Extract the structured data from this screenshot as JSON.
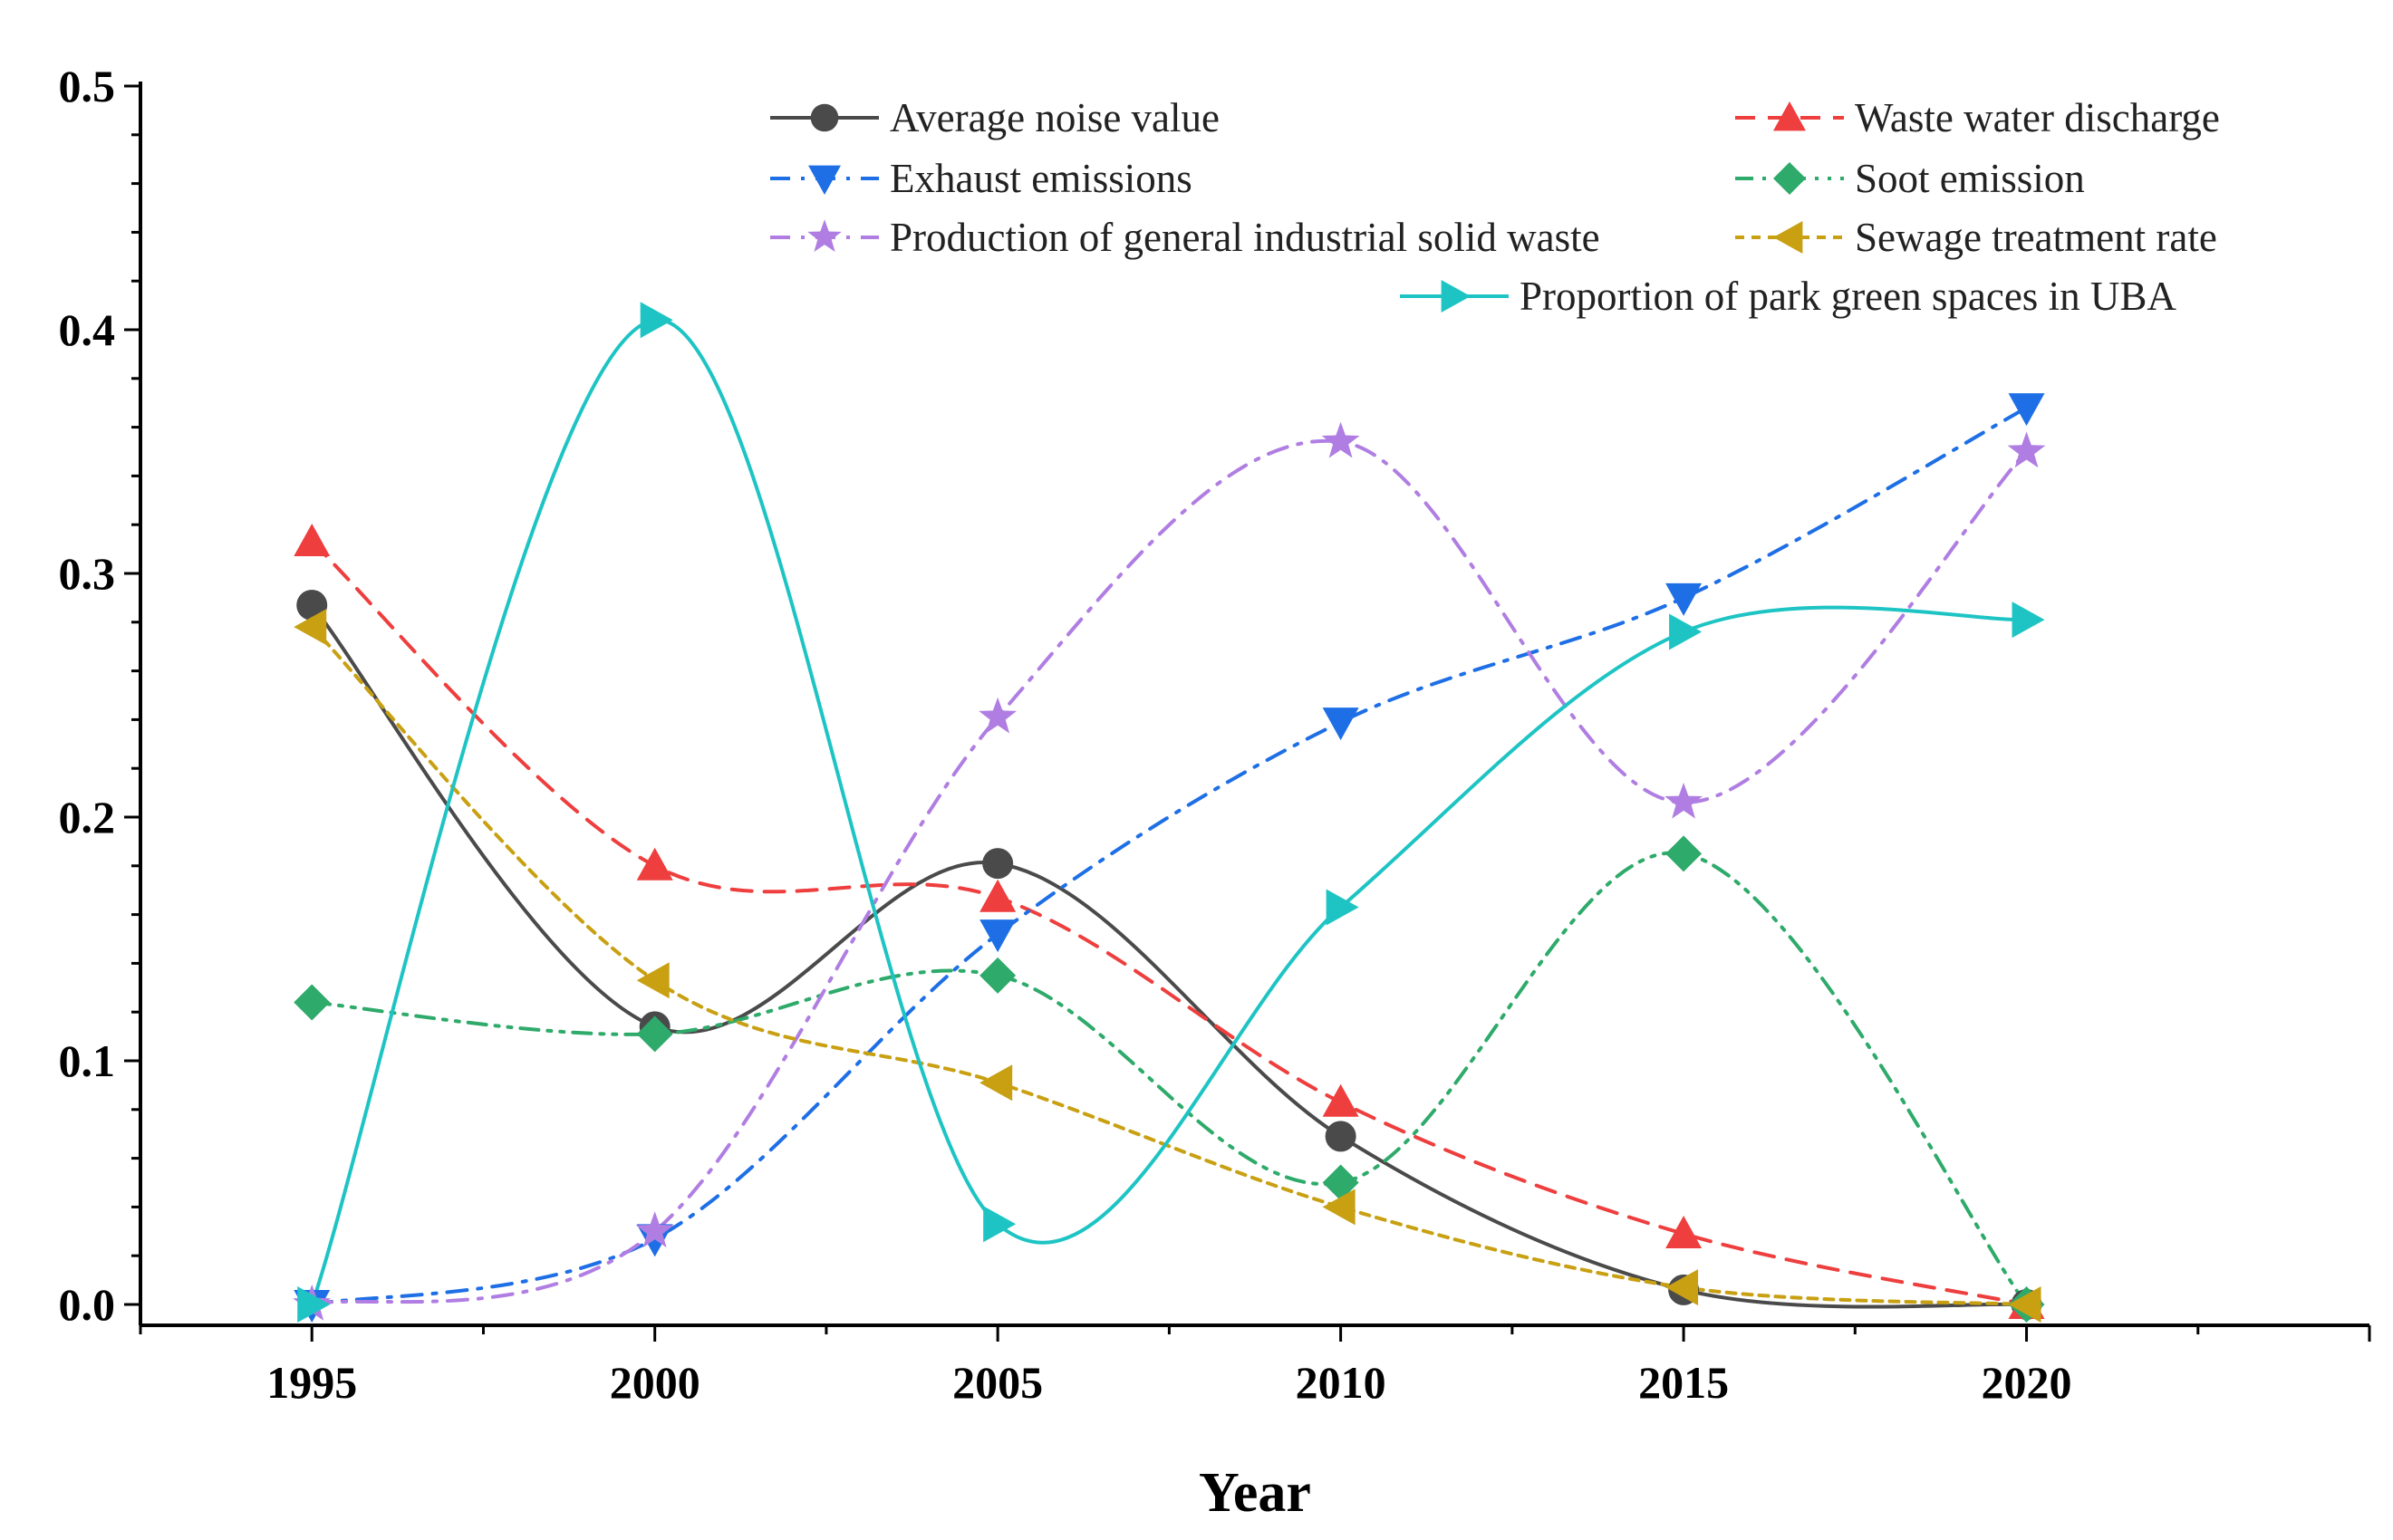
{
  "chart_data": {
    "type": "line",
    "title": "",
    "xlabel": "Year",
    "ylabel": "",
    "x": [
      1995,
      2000,
      2005,
      2010,
      2015,
      2020
    ],
    "xlim": [
      1992.5,
      2025
    ],
    "ylim": [
      0.0,
      0.5
    ],
    "xticks": [
      "1995",
      "2000",
      "2005",
      "2010",
      "2015",
      "2020"
    ],
    "yticks": [
      "0.0",
      "0.1",
      "0.2",
      "0.3",
      "0.4",
      "0.5"
    ],
    "grid": false,
    "legend_position": "top",
    "series": [
      {
        "name": "Average noise value",
        "color": "#4a4a4a",
        "marker": "circle",
        "dash": "solid",
        "values": [
          0.287,
          0.114,
          0.181,
          0.069,
          0.006,
          0.0
        ]
      },
      {
        "name": "Waste water discharge",
        "color": "#ee3e3e",
        "marker": "triangle-up",
        "dash": "dash",
        "values": [
          0.313,
          0.18,
          0.167,
          0.083,
          0.029,
          0.0
        ]
      },
      {
        "name": "Exhaust emissions",
        "color": "#1e6fe6",
        "marker": "triangle-down",
        "dash": "dashdot",
        "values": [
          0.0,
          0.027,
          0.152,
          0.239,
          0.29,
          0.368
        ]
      },
      {
        "name": "Soot emission",
        "color": "#2eaa6a",
        "marker": "diamond",
        "dash": "dashdotdot",
        "values": [
          0.124,
          0.111,
          0.135,
          0.05,
          0.185,
          0.0
        ]
      },
      {
        "name": "Production of general industrial solid waste",
        "color": "#b07ee2",
        "marker": "star",
        "dash": "dashdot",
        "values": [
          0.0,
          0.03,
          0.241,
          0.354,
          0.206,
          0.35
        ]
      },
      {
        "name": "Sewage treatment rate",
        "color": "#c8a012",
        "marker": "triangle-left",
        "dash": "shortdash",
        "values": [
          0.278,
          0.133,
          0.091,
          0.04,
          0.007,
          0.0
        ]
      },
      {
        "name": "Proportion of park green spaces in UBA",
        "color": "#1ec4c4",
        "marker": "triangle-right",
        "dash": "solid",
        "values": [
          0.0,
          0.404,
          0.033,
          0.163,
          0.276,
          0.281
        ]
      }
    ]
  }
}
